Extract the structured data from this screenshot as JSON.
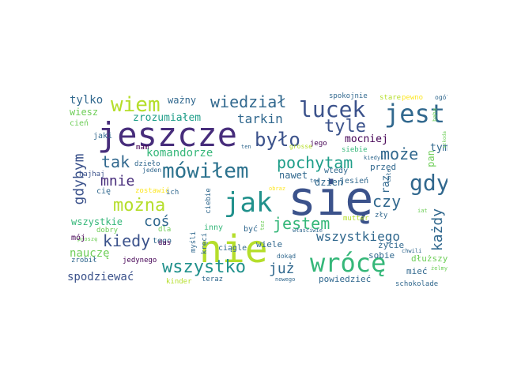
{
  "wordcloud": {
    "words": [
      {
        "text": "się",
        "color": "#3b528b"
      },
      {
        "text": "nie",
        "color": "#b5de2b"
      },
      {
        "text": "jeszcze",
        "color": "#472d7b"
      },
      {
        "text": "wrócę",
        "color": "#35b779"
      },
      {
        "text": "jest",
        "color": "#31688e"
      },
      {
        "text": "jak",
        "color": "#21918c"
      },
      {
        "text": "mówiłem",
        "color": "#2c728e"
      },
      {
        "text": "lucek",
        "color": "#3b528b"
      },
      {
        "text": "gdy",
        "color": "#31688e"
      },
      {
        "text": "było",
        "color": "#3b528b"
      },
      {
        "text": "wiem",
        "color": "#b5de2b"
      },
      {
        "text": "wszystko",
        "color": "#21918c"
      },
      {
        "text": "można",
        "color": "#b5de2b"
      },
      {
        "text": "wiedział",
        "color": "#31688e"
      },
      {
        "text": "tyle",
        "color": "#3b528b"
      },
      {
        "text": "pochytam",
        "color": "#1f9e89"
      },
      {
        "text": "jestem",
        "color": "#35b779"
      },
      {
        "text": "może",
        "color": "#31688e"
      },
      {
        "text": "czy",
        "color": "#31688e"
      },
      {
        "text": "kiedy",
        "color": "#3b528b"
      },
      {
        "text": "tak",
        "color": "#31688e"
      },
      {
        "text": "mnie",
        "color": "#472d7b"
      },
      {
        "text": "gdybym",
        "color": "#3b528b"
      },
      {
        "text": "każdy",
        "color": "#31688e"
      },
      {
        "text": "coś",
        "color": "#31688e"
      },
      {
        "text": "już",
        "color": "#31688e"
      },
      {
        "text": "wszystkiego",
        "color": "#31688e"
      },
      {
        "text": "tarkin",
        "color": "#31688e"
      },
      {
        "text": "komandorze",
        "color": "#35b779"
      },
      {
        "text": "spodziewać",
        "color": "#3b528b"
      },
      {
        "text": "nauczę",
        "color": "#6ece58"
      },
      {
        "text": "tylko",
        "color": "#31688e"
      },
      {
        "text": "zrozumiałem",
        "color": "#1f9e89"
      },
      {
        "text": "ważny",
        "color": "#31688e"
      },
      {
        "text": "wiesz",
        "color": "#6ece58"
      },
      {
        "text": "tym",
        "color": "#31688e"
      },
      {
        "text": "pan",
        "color": "#6ece58"
      },
      {
        "text": "mocniej",
        "color": "#440154"
      },
      {
        "text": "nawet",
        "color": "#31688e"
      },
      {
        "text": "raz",
        "color": "#31688e"
      },
      {
        "text": "wszystkie",
        "color": "#35b779"
      },
      {
        "text": "dzień",
        "color": "#31688e"
      },
      {
        "text": "przed",
        "color": "#31688e"
      },
      {
        "text": "wtedy",
        "color": "#31688e"
      },
      {
        "text": "jesień",
        "color": "#31688e"
      },
      {
        "text": "ciągle",
        "color": "#31688e"
      },
      {
        "text": "wiele",
        "color": "#31688e"
      },
      {
        "text": "sobie",
        "color": "#31688e"
      },
      {
        "text": "życie",
        "color": "#31688e"
      },
      {
        "text": "dłuższy",
        "color": "#6ece58"
      },
      {
        "text": "mieć",
        "color": "#31688e"
      },
      {
        "text": "powiedzieć",
        "color": "#31688e"
      },
      {
        "text": "teraz",
        "color": "#31688e"
      },
      {
        "text": "kinder",
        "color": "#b5de2b"
      },
      {
        "text": "schokolade",
        "color": "#31688e"
      },
      {
        "text": "jego",
        "color": "#440154"
      },
      {
        "text": "siebie",
        "color": "#35b779"
      },
      {
        "text": "stare",
        "color": "#b5de2b"
      },
      {
        "text": "pewno",
        "color": "#fde725"
      },
      {
        "text": "ogóle",
        "color": "#31688e"
      },
      {
        "text": "spokojnie",
        "color": "#31688e"
      },
      {
        "text": "grosse",
        "color": "#b5de2b"
      },
      {
        "text": "cień",
        "color": "#6ece58"
      },
      {
        "text": "jaki",
        "color": "#31688e"
      },
      {
        "text": "mam",
        "color": "#440154"
      },
      {
        "text": "hajhaj",
        "color": "#3b528b"
      },
      {
        "text": "proszę",
        "color": "#6ece58"
      },
      {
        "text": "dzieło",
        "color": "#31688e"
      },
      {
        "text": "jeden",
        "color": "#31688e"
      },
      {
        "text": "cię",
        "color": "#31688e"
      },
      {
        "text": "zostawić",
        "color": "#fde725"
      },
      {
        "text": "ich",
        "color": "#31688e"
      },
      {
        "text": "ciebie",
        "color": "#31688e"
      },
      {
        "text": "dobry",
        "color": "#6ece58"
      },
      {
        "text": "mój",
        "color": "#440154"
      },
      {
        "text": "dla",
        "color": "#6ece58"
      },
      {
        "text": "tego",
        "color": "#31688e"
      },
      {
        "text": "das",
        "color": "#440154"
      },
      {
        "text": "zrobił",
        "color": "#31688e"
      },
      {
        "text": "jedynego",
        "color": "#440154"
      },
      {
        "text": "kręci",
        "color": "#31688e"
      },
      {
        "text": "inny",
        "color": "#35b779"
      },
      {
        "text": "myśli",
        "color": "#31688e"
      },
      {
        "text": "być",
        "color": "#31688e"
      },
      {
        "text": "tez",
        "color": "#6ece58"
      },
      {
        "text": "właściwie",
        "color": "#31688e"
      },
      {
        "text": "dokąd",
        "color": "#31688e"
      },
      {
        "text": "mutter",
        "color": "#b5de2b"
      },
      {
        "text": "zły",
        "color": "#31688e"
      },
      {
        "text": "iat",
        "color": "#6ece58"
      },
      {
        "text": "nowego",
        "color": "#31688e"
      },
      {
        "text": "chwili",
        "color": "#31688e"
      },
      {
        "text": "żelmy",
        "color": "#6ece58"
      },
      {
        "text": "obraz",
        "color": "#fde725"
      },
      {
        "text": "też",
        "color": "#31688e"
      },
      {
        "text": "kiedyś",
        "color": "#31688e"
      },
      {
        "text": "całe",
        "color": "#31688e"
      },
      {
        "text": "ten",
        "color": "#31688e"
      },
      {
        "text": "baha",
        "color": "#6ece58"
      },
      {
        "text": "szkoda",
        "color": "#6ece58"
      }
    ]
  }
}
